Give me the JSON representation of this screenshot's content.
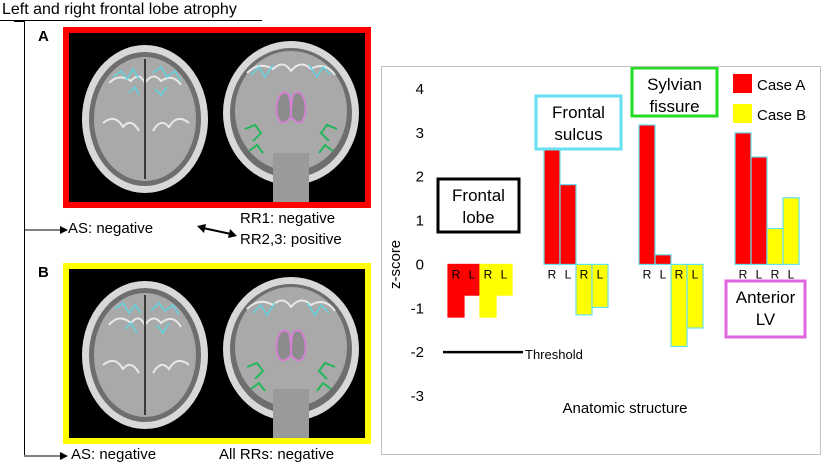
{
  "figure": {
    "title": "Left and right frontal lobe atrophy",
    "panel_a": {
      "letter": "A",
      "as_result": "AS: negative",
      "rr1_result": "RR1: negative",
      "rr23_result": "RR2,3: positive"
    },
    "panel_b": {
      "letter": "B",
      "as_result": "AS: negative",
      "rr_result": "All RRs: negative"
    }
  },
  "colors": {
    "case_a": "#ff0000",
    "case_b": "#ffff00",
    "frontal_lobe_box": "#000000",
    "frontal_sulcus_box": "#66e0f0",
    "sylvian_fissure_box": "#22dd22",
    "anterior_lv_box": "#e066e0",
    "contour_sulcus": "#5fd3e0",
    "contour_sylvian": "#22b85a",
    "contour_lv": "#d580d5"
  },
  "chart_data": {
    "type": "bar",
    "ylabel": "z-score",
    "xlabel": "Anatomic structure",
    "ylim": [
      -3,
      4
    ],
    "yticks": [
      "4",
      "3",
      "2",
      "1",
      "0",
      "-1",
      "-2",
      "-3"
    ],
    "legend": [
      {
        "label": "Case A",
        "color": "#ff0000"
      },
      {
        "label": "Case B",
        "color": "#ffff00"
      }
    ],
    "threshold": {
      "value": -2,
      "label": "Threshold"
    },
    "groups": [
      {
        "name": "Frontal lobe",
        "name_lines": [
          "Frontal",
          "lobe"
        ],
        "bars": [
          {
            "series": "Case A",
            "side": "R",
            "value": -1.2
          },
          {
            "series": "Case A",
            "side": "L",
            "value": -0.7
          },
          {
            "series": "Case B",
            "side": "R",
            "value": -1.2
          },
          {
            "series": "Case B",
            "side": "L",
            "value": -0.7
          }
        ]
      },
      {
        "name": "Frontal sulcus",
        "name_lines": [
          "Frontal",
          "sulcus"
        ],
        "bars": [
          {
            "series": "Case A",
            "side": "R",
            "value": 2.82
          },
          {
            "series": "Case A",
            "side": "L",
            "value": 1.82
          },
          {
            "series": "Case B",
            "side": "R",
            "value": -1.15
          },
          {
            "series": "Case B",
            "side": "L",
            "value": -0.98
          }
        ]
      },
      {
        "name": "Sylvian fissure",
        "name_lines": [
          "Sylvian",
          "fissure"
        ],
        "bars": [
          {
            "series": "Case A",
            "side": "R",
            "value": 3.18
          },
          {
            "series": "Case A",
            "side": "L",
            "value": 0.22
          },
          {
            "series": "Case B",
            "side": "R",
            "value": -1.87
          },
          {
            "series": "Case B",
            "side": "L",
            "value": -1.45
          }
        ]
      },
      {
        "name": "Anterior LV",
        "name_lines": [
          "Anterior",
          "LV"
        ],
        "bars": [
          {
            "series": "Case A",
            "side": "R",
            "value": 3.0
          },
          {
            "series": "Case A",
            "side": "L",
            "value": 2.45
          },
          {
            "series": "Case B",
            "side": "R",
            "value": 0.82
          },
          {
            "series": "Case B",
            "side": "L",
            "value": 1.52
          }
        ]
      }
    ]
  }
}
